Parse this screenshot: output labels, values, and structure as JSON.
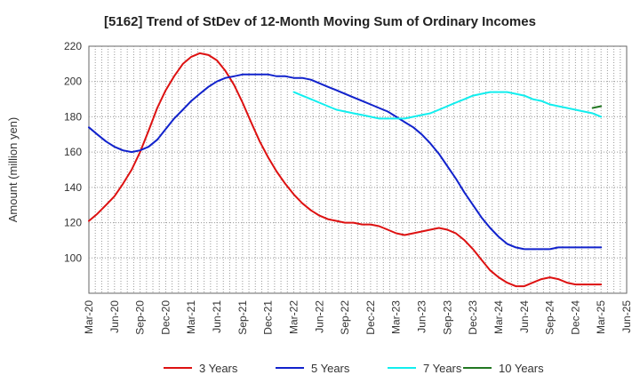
{
  "chart_data": {
    "type": "line",
    "title": "[5162]  Trend of StDev of 12-Month Moving Sum of Ordinary Incomes",
    "xlabel": "",
    "ylabel": "Amount (million yen)",
    "ylim": [
      80,
      220
    ],
    "yticks": [
      100,
      120,
      140,
      160,
      180,
      200,
      220
    ],
    "xlim": [
      0,
      20
    ],
    "x_ticks": [
      "Mar-20",
      "Jun-20",
      "Sep-20",
      "Dec-20",
      "Mar-21",
      "Jun-21",
      "Sep-21",
      "Dec-21",
      "Mar-22",
      "Jun-22",
      "Sep-22",
      "Dec-22",
      "Mar-23",
      "Jun-23",
      "Sep-23",
      "Dec-23",
      "Mar-24",
      "Jun-24",
      "Sep-24",
      "Dec-24",
      "Mar-25",
      "Jun-25"
    ],
    "x_tick_step": 1,
    "grid": true,
    "legend_position": "bottom",
    "series": [
      {
        "name": "3 Years",
        "color": "#dd1111",
        "x": [
          0,
          0.33,
          0.67,
          1,
          1.33,
          1.67,
          2,
          2.33,
          2.67,
          3,
          3.33,
          3.67,
          4,
          4.33,
          4.67,
          5,
          5.33,
          5.67,
          6,
          6.33,
          6.67,
          7,
          7.33,
          7.67,
          8,
          8.33,
          8.67,
          9,
          9.33,
          9.67,
          10,
          10.33,
          10.67,
          11,
          11.33,
          11.67,
          12,
          12.33,
          12.67,
          13,
          13.33,
          13.67,
          14,
          14.33,
          14.67,
          15,
          15.33,
          15.67,
          16,
          16.33,
          16.67,
          17,
          17.33,
          17.67,
          18,
          18.33,
          18.67,
          19,
          19.33,
          19.67,
          20
        ],
        "values": [
          121,
          125,
          130,
          135,
          142,
          150,
          160,
          172,
          185,
          195,
          203,
          210,
          214,
          216,
          215,
          212,
          206,
          198,
          188,
          177,
          166,
          157,
          149,
          142,
          136,
          131,
          127,
          124,
          122,
          121,
          120,
          120,
          119,
          119,
          118,
          116,
          114,
          113,
          114,
          115,
          116,
          117,
          116,
          114,
          110,
          105,
          99,
          93,
          89,
          86,
          84,
          84,
          86,
          88,
          89,
          88,
          86,
          85,
          85,
          85,
          85
        ]
      },
      {
        "name": "5 Years",
        "color": "#1122cc",
        "x": [
          0,
          0.33,
          0.67,
          1,
          1.33,
          1.67,
          2,
          2.33,
          2.67,
          3,
          3.33,
          3.67,
          4,
          4.33,
          4.67,
          5,
          5.33,
          5.67,
          6,
          6.33,
          6.67,
          7,
          7.33,
          7.67,
          8,
          8.33,
          8.67,
          9,
          9.33,
          9.67,
          10,
          10.33,
          10.67,
          11,
          11.33,
          11.67,
          12,
          12.33,
          12.67,
          13,
          13.33,
          13.67,
          14,
          14.33,
          14.67,
          15,
          15.33,
          15.67,
          16,
          16.33,
          16.67,
          17,
          17.33,
          17.67,
          18,
          18.33,
          18.67,
          19,
          19.33,
          19.67,
          20
        ],
        "values": [
          174,
          170,
          166,
          163,
          161,
          160,
          161,
          163,
          167,
          173,
          179,
          184,
          189,
          193,
          197,
          200,
          202,
          203,
          204,
          204,
          204,
          204,
          203,
          203,
          202,
          202,
          201,
          199,
          197,
          195,
          193,
          191,
          189,
          187,
          185,
          183,
          180,
          177,
          174,
          170,
          165,
          159,
          152,
          145,
          137,
          130,
          123,
          117,
          112,
          108,
          106,
          105,
          105,
          105,
          105,
          106,
          106,
          106,
          106,
          106,
          106
        ]
      },
      {
        "name": "7 Years",
        "color": "#11eeee",
        "x": [
          8,
          8.33,
          8.67,
          9,
          9.33,
          9.67,
          10,
          10.33,
          10.67,
          11,
          11.33,
          11.67,
          12,
          12.33,
          12.67,
          13,
          13.33,
          13.67,
          14,
          14.33,
          14.67,
          15,
          15.33,
          15.67,
          16,
          16.33,
          16.67,
          17,
          17.33,
          17.67,
          18,
          18.33,
          18.67,
          19,
          19.33,
          19.67,
          20
        ],
        "values": [
          194,
          192,
          190,
          188,
          186,
          184,
          183,
          182,
          181,
          180,
          179,
          179,
          179,
          179,
          180,
          181,
          182,
          184,
          186,
          188,
          190,
          192,
          193,
          194,
          194,
          194,
          193,
          192,
          190,
          189,
          187,
          186,
          185,
          184,
          183,
          182,
          180
        ]
      },
      {
        "name": "10 Years",
        "color": "#227722",
        "x": [
          19.67,
          20
        ],
        "values": [
          185,
          186
        ]
      }
    ]
  }
}
